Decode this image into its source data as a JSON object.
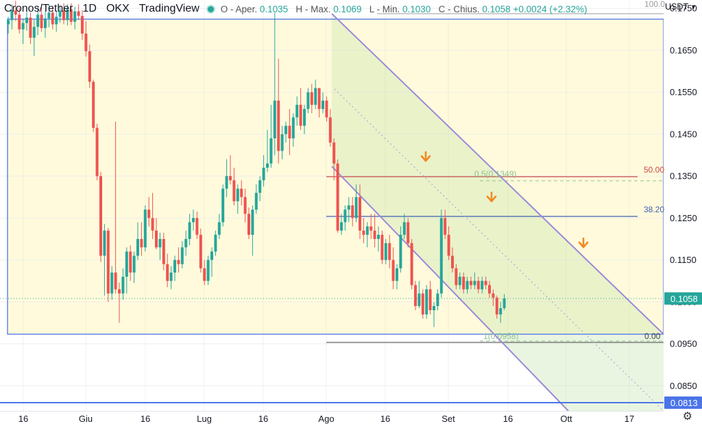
{
  "legend": {
    "symbol": "Cronos/Tether",
    "interval": "1D",
    "exchange": "OKX",
    "source": "TradingView",
    "open_label": "O - Aper.",
    "open": "0.1035",
    "high_label": "H - Max.",
    "high": "0.1069",
    "low_label": "L - Min.",
    "low": "0.1030",
    "close_label": "C - Chius.",
    "close": "0.1058",
    "change": "+0.0024 (+2.32%)"
  },
  "currency": "USDT",
  "colors": {
    "up": "#26a69a",
    "down": "#ef5350",
    "zone": "#fffadc",
    "box_border": "#4a74e8",
    "channel": "#9a8ad8",
    "fib_mid": "#c84848",
    "fib_382": "#3f5fb0",
    "arrow": "#f08a24"
  },
  "chart_data": {
    "type": "candlestick",
    "y_axis": {
      "min": 0.079,
      "max": 0.177,
      "ticks": [
        "0.0850",
        "0.0950",
        "0.1050",
        "0.1150",
        "0.1250",
        "0.1350",
        "0.1450",
        "0.1550",
        "0.1650",
        "0.1750"
      ]
    },
    "x_axis": {
      "ticks": [
        "16",
        "Giu",
        "16",
        "Lug",
        "16",
        "Ago",
        "16",
        "Set",
        "16",
        "Ott",
        "17"
      ]
    },
    "price_labels": {
      "last": "0.1058",
      "support": "0.0813"
    },
    "fib_labels": {
      "top_right": "100.0",
      "mid_value": "0.5(0.1349)",
      "mid_right": "50.00",
      "level_382": "38.20",
      "bottom_value": "1(0.0958)",
      "bottom_right": "0.00"
    },
    "candles": [
      [
        0.1712,
        0.173,
        0.169,
        0.1722
      ],
      [
        0.1722,
        0.176,
        0.17,
        0.1745
      ],
      [
        0.1745,
        0.1768,
        0.172,
        0.1735
      ],
      [
        0.1735,
        0.175,
        0.169,
        0.17
      ],
      [
        0.17,
        0.1726,
        0.1665,
        0.1715
      ],
      [
        0.1715,
        0.1742,
        0.1697,
        0.1728
      ],
      [
        0.1728,
        0.174,
        0.1665,
        0.168
      ],
      [
        0.168,
        0.1722,
        0.1636,
        0.1706
      ],
      [
        0.1706,
        0.1756,
        0.1686,
        0.1735
      ],
      [
        0.1735,
        0.176,
        0.1694,
        0.1703
      ],
      [
        0.1703,
        0.1742,
        0.168,
        0.1726
      ],
      [
        0.1726,
        0.1759,
        0.1705,
        0.174
      ],
      [
        0.174,
        0.1756,
        0.17,
        0.1712
      ],
      [
        0.1712,
        0.1743,
        0.1694,
        0.173
      ],
      [
        0.173,
        0.1757,
        0.1716,
        0.1745
      ],
      [
        0.1745,
        0.1762,
        0.1712,
        0.1722
      ],
      [
        0.1722,
        0.176,
        0.1709,
        0.1748
      ],
      [
        0.1748,
        0.1762,
        0.171,
        0.1718
      ],
      [
        0.1718,
        0.1754,
        0.17,
        0.1743
      ],
      [
        0.1743,
        0.176,
        0.1723,
        0.1732
      ],
      [
        0.1732,
        0.1746,
        0.1675,
        0.169
      ],
      [
        0.169,
        0.1719,
        0.1635,
        0.1648
      ],
      [
        0.1648,
        0.1664,
        0.156,
        0.1575
      ],
      [
        0.1575,
        0.158,
        0.1455,
        0.1465
      ],
      [
        0.1465,
        0.1475,
        0.134,
        0.135
      ],
      [
        0.135,
        0.136,
        0.1145,
        0.116
      ],
      [
        0.116,
        0.1236,
        0.1065,
        0.122
      ],
      [
        0.122,
        0.1226,
        0.105,
        0.107
      ],
      [
        0.107,
        0.1135,
        0.1055,
        0.112
      ],
      [
        0.112,
        0.148,
        0.107,
        0.108
      ],
      [
        0.108,
        0.1096,
        0.1,
        0.107
      ],
      [
        0.107,
        0.113,
        0.1055,
        0.111
      ],
      [
        0.111,
        0.118,
        0.107,
        0.117
      ],
      [
        0.117,
        0.1185,
        0.11,
        0.112
      ],
      [
        0.112,
        0.117,
        0.1095,
        0.116
      ],
      [
        0.116,
        0.124,
        0.115,
        0.12
      ],
      [
        0.12,
        0.124,
        0.116,
        0.118
      ],
      [
        0.118,
        0.128,
        0.117,
        0.127
      ],
      [
        0.127,
        0.13,
        0.123,
        0.125
      ],
      [
        0.125,
        0.131,
        0.12,
        0.122
      ],
      [
        0.122,
        0.125,
        0.1175,
        0.118
      ],
      [
        0.118,
        0.1215,
        0.115,
        0.12
      ],
      [
        0.12,
        0.1215,
        0.1125,
        0.114
      ],
      [
        0.114,
        0.1165,
        0.1085,
        0.11
      ],
      [
        0.11,
        0.1135,
        0.108,
        0.112
      ],
      [
        0.112,
        0.116,
        0.11,
        0.115
      ],
      [
        0.115,
        0.118,
        0.112,
        0.114
      ],
      [
        0.114,
        0.1195,
        0.113,
        0.118
      ],
      [
        0.118,
        0.122,
        0.116,
        0.12
      ],
      [
        0.12,
        0.126,
        0.1185,
        0.124
      ],
      [
        0.124,
        0.127,
        0.122,
        0.125
      ],
      [
        0.125,
        0.1265,
        0.12,
        0.121
      ],
      [
        0.121,
        0.1225,
        0.112,
        0.113
      ],
      [
        0.113,
        0.115,
        0.109,
        0.11
      ],
      [
        0.11,
        0.116,
        0.109,
        0.115
      ],
      [
        0.115,
        0.118,
        0.111,
        0.117
      ],
      [
        0.117,
        0.122,
        0.116,
        0.121
      ],
      [
        0.121,
        0.126,
        0.12,
        0.124
      ],
      [
        0.124,
        0.133,
        0.123,
        0.132
      ],
      [
        0.132,
        0.139,
        0.13,
        0.135
      ],
      [
        0.135,
        0.14,
        0.133,
        0.134
      ],
      [
        0.134,
        0.137,
        0.128,
        0.129
      ],
      [
        0.129,
        0.133,
        0.126,
        0.132
      ],
      [
        0.132,
        0.134,
        0.128,
        0.13
      ],
      [
        0.13,
        0.132,
        0.124,
        0.126
      ],
      [
        0.126,
        0.1275,
        0.12,
        0.121
      ],
      [
        0.121,
        0.128,
        0.116,
        0.127
      ],
      [
        0.127,
        0.133,
        0.126,
        0.131
      ],
      [
        0.131,
        0.135,
        0.129,
        0.134
      ],
      [
        0.134,
        0.14,
        0.1325,
        0.137
      ],
      [
        0.137,
        0.146,
        0.136,
        0.138
      ],
      [
        0.138,
        0.152,
        0.137,
        0.144
      ],
      [
        0.144,
        0.174,
        0.14,
        0.153
      ],
      [
        0.153,
        0.163,
        0.138,
        0.141
      ],
      [
        0.141,
        0.147,
        0.139,
        0.145
      ],
      [
        0.145,
        0.148,
        0.143,
        0.147
      ],
      [
        0.147,
        0.151,
        0.14,
        0.144
      ],
      [
        0.144,
        0.15,
        0.142,
        0.149
      ],
      [
        0.149,
        0.154,
        0.147,
        0.152
      ],
      [
        0.152,
        0.156,
        0.146,
        0.147
      ],
      [
        0.147,
        0.152,
        0.145,
        0.151
      ],
      [
        0.151,
        0.156,
        0.15,
        0.155
      ],
      [
        0.155,
        0.157,
        0.15,
        0.152
      ],
      [
        0.152,
        0.158,
        0.151,
        0.156
      ],
      [
        0.156,
        0.156,
        0.149,
        0.151
      ],
      [
        0.151,
        0.155,
        0.15,
        0.153
      ],
      [
        0.153,
        0.154,
        0.148,
        0.149
      ],
      [
        0.149,
        0.151,
        0.142,
        0.143
      ],
      [
        0.143,
        0.144,
        0.134,
        0.138
      ],
      [
        0.138,
        0.139,
        0.1215,
        0.122
      ],
      [
        0.122,
        0.126,
        0.121,
        0.124
      ],
      [
        0.124,
        0.128,
        0.122,
        0.127
      ],
      [
        0.127,
        0.13,
        0.124,
        0.128
      ],
      [
        0.128,
        0.13,
        0.123,
        0.125
      ],
      [
        0.125,
        0.133,
        0.124,
        0.13
      ],
      [
        0.13,
        0.133,
        0.12,
        0.122
      ],
      [
        0.122,
        0.125,
        0.119,
        0.121
      ],
      [
        0.121,
        0.124,
        0.118,
        0.123
      ],
      [
        0.123,
        0.126,
        0.12,
        0.122
      ],
      [
        0.122,
        0.126,
        0.118,
        0.12
      ],
      [
        0.12,
        0.123,
        0.117,
        0.121
      ],
      [
        0.121,
        0.122,
        0.114,
        0.115
      ],
      [
        0.115,
        0.12,
        0.114,
        0.119
      ],
      [
        0.119,
        0.121,
        0.113,
        0.115
      ],
      [
        0.115,
        0.118,
        0.108,
        0.11
      ],
      [
        0.11,
        0.114,
        0.108,
        0.113
      ],
      [
        0.113,
        0.123,
        0.112,
        0.121
      ],
      [
        0.121,
        0.126,
        0.12,
        0.124
      ],
      [
        0.124,
        0.125,
        0.118,
        0.119
      ],
      [
        0.119,
        0.12,
        0.108,
        0.109
      ],
      [
        0.109,
        0.11,
        0.103,
        0.104
      ],
      [
        0.104,
        0.11,
        0.1035,
        0.107
      ],
      [
        0.107,
        0.108,
        0.101,
        0.102
      ],
      [
        0.102,
        0.109,
        0.101,
        0.108
      ],
      [
        0.108,
        0.11,
        0.102,
        0.103
      ],
      [
        0.103,
        0.105,
        0.099,
        0.104
      ],
      [
        0.104,
        0.108,
        0.103,
        0.107
      ],
      [
        0.107,
        0.127,
        0.106,
        0.125
      ],
      [
        0.125,
        0.127,
        0.12,
        0.121
      ],
      [
        0.121,
        0.123,
        0.115,
        0.116
      ],
      [
        0.116,
        0.118,
        0.112,
        0.113
      ],
      [
        0.113,
        0.114,
        0.108,
        0.109
      ],
      [
        0.109,
        0.112,
        0.108,
        0.111
      ],
      [
        0.111,
        0.112,
        0.107,
        0.108
      ],
      [
        0.108,
        0.111,
        0.107,
        0.11
      ],
      [
        0.11,
        0.111,
        0.108,
        0.109
      ],
      [
        0.109,
        0.112,
        0.108,
        0.11
      ],
      [
        0.11,
        0.111,
        0.107,
        0.108
      ],
      [
        0.108,
        0.111,
        0.107,
        0.11
      ],
      [
        0.11,
        0.111,
        0.108,
        0.109
      ],
      [
        0.109,
        0.11,
        0.106,
        0.107
      ],
      [
        0.107,
        0.108,
        0.104,
        0.106
      ],
      [
        0.106,
        0.1065,
        0.101,
        0.102
      ],
      [
        0.102,
        0.105,
        0.1,
        0.1035
      ],
      [
        0.1035,
        0.1069,
        0.103,
        0.1058
      ]
    ]
  }
}
